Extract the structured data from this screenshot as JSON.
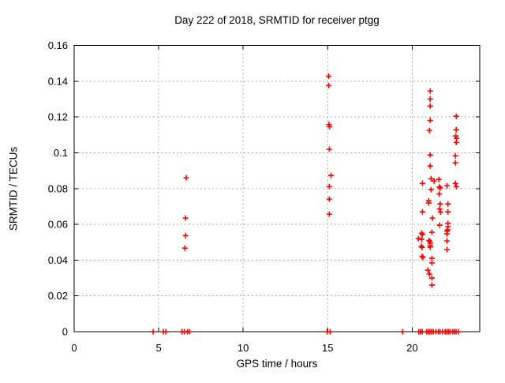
{
  "chart_data": {
    "type": "scatter",
    "title": "Day 222 of 2018, SRMTID for receiver ptgg",
    "xlabel": "GPS time / hours",
    "ylabel": "SRMTID / TECUs",
    "xlim": [
      0,
      24
    ],
    "ylim": [
      0,
      0.16
    ],
    "grid": true,
    "legend": "none",
    "xticks": {
      "values": [
        0,
        5,
        10,
        15,
        20
      ],
      "labels": [
        "0",
        "5",
        "10",
        "15",
        "20"
      ]
    },
    "yticks": {
      "values": [
        0,
        0.02,
        0.04,
        0.06,
        0.08,
        0.1,
        0.12,
        0.14,
        0.16
      ],
      "labels": [
        "0",
        "0.02",
        "0.04",
        "0.06",
        "0.08",
        "0.1",
        "0.12",
        "0.14",
        "0.16"
      ]
    },
    "marker": {
      "shape": "plus",
      "color": "#ff0000",
      "size": 7
    },
    "colors": {
      "background": "#ffffff",
      "axis": "#000000",
      "grid": "#a8a8a8",
      "text": "#000000"
    },
    "series": [
      {
        "name": "SRMTID",
        "points": [
          [
            6.63,
            0.086
          ],
          [
            6.59,
            0.0635
          ],
          [
            6.59,
            0.0537
          ],
          [
            6.55,
            0.0467
          ],
          [
            15.06,
            0.1428
          ],
          [
            15.06,
            0.1376
          ],
          [
            15.08,
            0.1158
          ],
          [
            15.11,
            0.1146
          ],
          [
            15.1,
            0.1019
          ],
          [
            15.2,
            0.0873
          ],
          [
            15.1,
            0.0811
          ],
          [
            15.1,
            0.0741
          ],
          [
            15.1,
            0.0657
          ],
          [
            21.07,
            0.1345
          ],
          [
            21.07,
            0.13
          ],
          [
            21.07,
            0.1261
          ],
          [
            21.07,
            0.1181
          ],
          [
            21.02,
            0.1124
          ],
          [
            22.61,
            0.1204
          ],
          [
            22.61,
            0.1129
          ],
          [
            22.58,
            0.1094
          ],
          [
            22.63,
            0.108
          ],
          [
            22.61,
            0.1058
          ],
          [
            21.07,
            0.0988
          ],
          [
            21.07,
            0.0926
          ],
          [
            22.56,
            0.0983
          ],
          [
            22.56,
            0.0944
          ],
          [
            21.12,
            0.0855
          ],
          [
            21.3,
            0.0842
          ],
          [
            21.58,
            0.0851
          ],
          [
            20.61,
            0.0829
          ],
          [
            22.06,
            0.0816
          ],
          [
            22.56,
            0.0829
          ],
          [
            22.61,
            0.0811
          ],
          [
            21.61,
            0.0809
          ],
          [
            21.66,
            0.0804
          ],
          [
            21.12,
            0.0794
          ],
          [
            21.6,
            0.077
          ],
          [
            20.98,
            0.0732
          ],
          [
            20.98,
            0.0719
          ],
          [
            21.66,
            0.0714
          ],
          [
            22.12,
            0.0714
          ],
          [
            20.61,
            0.067
          ],
          [
            21.63,
            0.0686
          ],
          [
            21.68,
            0.0668
          ],
          [
            22.12,
            0.067
          ],
          [
            21.2,
            0.0635
          ],
          [
            22.12,
            0.0605
          ],
          [
            21.63,
            0.0595
          ],
          [
            22.12,
            0.0586
          ],
          [
            22.1,
            0.0569
          ],
          [
            20.56,
            0.0551
          ],
          [
            20.61,
            0.0543
          ],
          [
            21.17,
            0.0556
          ],
          [
            22.06,
            0.0562
          ],
          [
            22.06,
            0.0547
          ],
          [
            20.37,
            0.052
          ],
          [
            20.56,
            0.0516
          ],
          [
            21.0,
            0.051
          ],
          [
            21.05,
            0.0505
          ],
          [
            22.06,
            0.0507
          ],
          [
            21.07,
            0.0494
          ],
          [
            21.07,
            0.0481
          ],
          [
            20.54,
            0.0478
          ],
          [
            20.59,
            0.0471
          ],
          [
            21.07,
            0.0472
          ],
          [
            22.06,
            0.0459
          ],
          [
            20.59,
            0.0421
          ],
          [
            20.64,
            0.0416
          ],
          [
            21.17,
            0.041
          ],
          [
            21.17,
            0.0384
          ],
          [
            20.93,
            0.0344
          ],
          [
            21.02,
            0.0322
          ],
          [
            21.17,
            0.03
          ],
          [
            21.17,
            0.026
          ],
          [
            4.67,
            0
          ],
          [
            5.28,
            0
          ],
          [
            5.42,
            0
          ],
          [
            6.38,
            0
          ],
          [
            6.52,
            0
          ],
          [
            6.7,
            0
          ],
          [
            6.82,
            0
          ],
          [
            14.97,
            0
          ],
          [
            15.15,
            0
          ],
          [
            19.44,
            0
          ],
          [
            20.4,
            0
          ],
          [
            20.5,
            0
          ],
          [
            20.6,
            0
          ],
          [
            20.85,
            0
          ],
          [
            20.95,
            0
          ],
          [
            21.05,
            0
          ],
          [
            21.15,
            0
          ],
          [
            21.25,
            0
          ],
          [
            21.4,
            0
          ],
          [
            21.55,
            0
          ],
          [
            21.65,
            0
          ],
          [
            21.8,
            0
          ],
          [
            21.95,
            0
          ],
          [
            22.05,
            0
          ],
          [
            22.15,
            0
          ],
          [
            22.25,
            0
          ],
          [
            22.4,
            0
          ],
          [
            22.5,
            0
          ],
          [
            22.6,
            0
          ],
          [
            22.75,
            0
          ]
        ]
      }
    ]
  }
}
